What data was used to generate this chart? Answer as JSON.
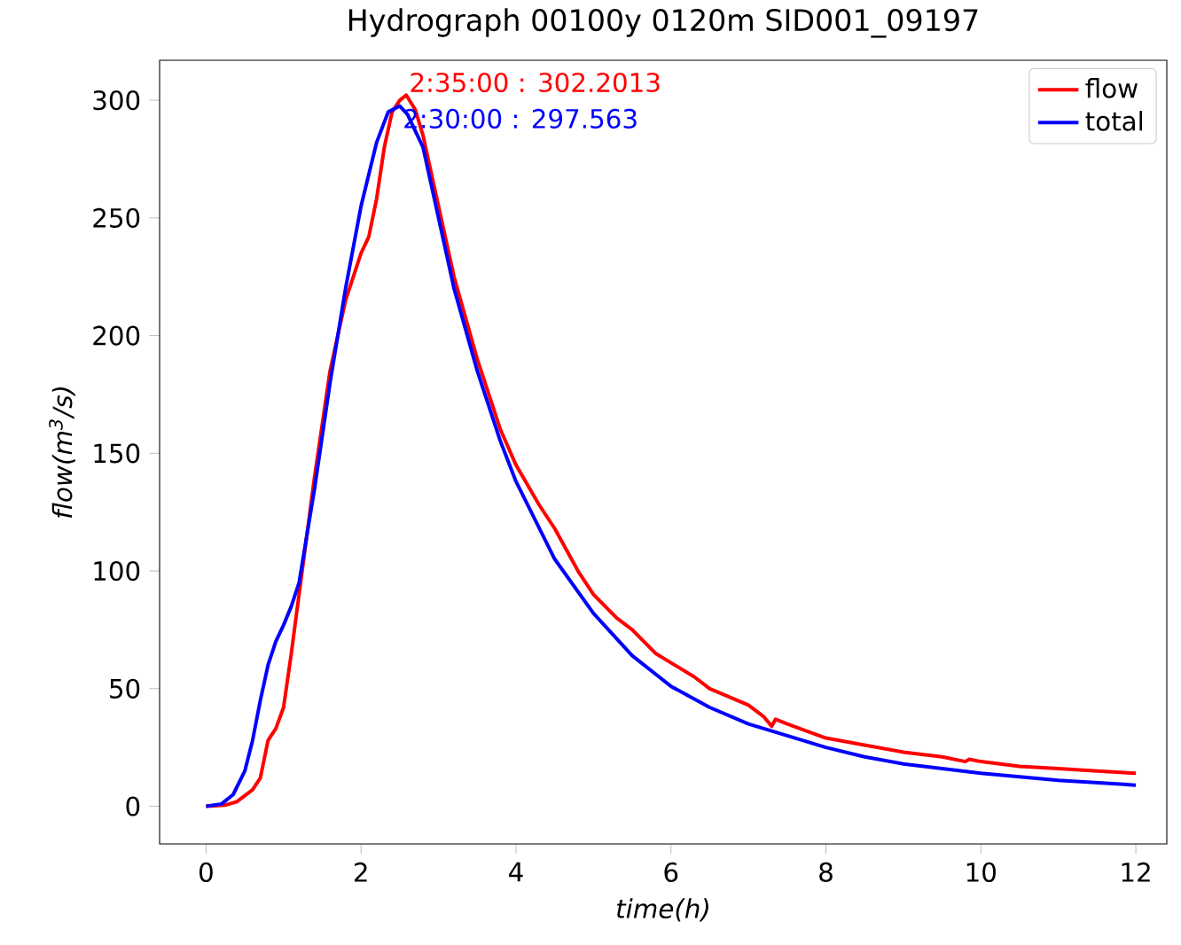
{
  "chart_data": {
    "type": "line",
    "title": "Hydrograph 00100y 0120m SID001_09197",
    "xlabel": "time(h)",
    "ylabel": "flow(m$^{3}$/s)",
    "xlim": [
      -0.6,
      12.4
    ],
    "ylim": [
      -16,
      317
    ],
    "xticks": [
      0,
      2,
      4,
      6,
      8,
      10,
      12
    ],
    "yticks": [
      0,
      50,
      100,
      150,
      200,
      250,
      300
    ],
    "legend": "top right",
    "grid": false,
    "annotations": [
      {
        "text": "2:35:00 : 302.2013",
        "x": 2.5833,
        "y": 302.2013
      },
      {
        "text": "2:30:00 : 297.563",
        "x": 2.5,
        "y": 297.563
      }
    ],
    "series": [
      {
        "name": "flow",
        "color": "#ff0000",
        "x": [
          0,
          0.25,
          0.4,
          0.6,
          0.7,
          0.8,
          0.9,
          1.0,
          1.1,
          1.2,
          1.4,
          1.6,
          1.8,
          2.0,
          2.1,
          2.2,
          2.3,
          2.4,
          2.5,
          2.5833,
          2.7,
          2.8,
          3.0,
          3.2,
          3.5,
          3.8,
          4.0,
          4.3,
          4.5,
          4.8,
          5.0,
          5.3,
          5.5,
          5.8,
          6.0,
          6.3,
          6.5,
          7.0,
          7.2,
          7.3,
          7.35,
          7.5,
          8.0,
          8.5,
          9.0,
          9.5,
          9.8,
          9.85,
          10.0,
          10.5,
          11.0,
          11.5,
          12.0
        ],
        "values": [
          0,
          0.5,
          2,
          7,
          12,
          28,
          33,
          42,
          65,
          90,
          140,
          185,
          215,
          235,
          242,
          258,
          280,
          295,
          300,
          302.2013,
          296,
          285,
          255,
          225,
          190,
          160,
          145,
          128,
          118,
          100,
          90,
          80,
          75,
          65,
          61,
          55,
          50,
          43,
          38,
          34,
          37,
          35,
          29,
          26,
          23,
          21,
          19,
          20,
          19,
          17,
          16,
          15,
          14
        ]
      },
      {
        "name": "total",
        "color": "#0000ff",
        "x": [
          0,
          0.2,
          0.35,
          0.5,
          0.6,
          0.7,
          0.8,
          0.9,
          1.0,
          1.1,
          1.2,
          1.4,
          1.6,
          1.8,
          2.0,
          2.2,
          2.35,
          2.5,
          2.6,
          2.8,
          3.0,
          3.2,
          3.5,
          3.8,
          4.0,
          4.5,
          5.0,
          5.5,
          6.0,
          6.5,
          7.0,
          7.5,
          8.0,
          8.5,
          9.0,
          9.5,
          10.0,
          10.5,
          11.0,
          11.5,
          12.0
        ],
        "values": [
          0,
          1,
          5,
          15,
          28,
          45,
          60,
          70,
          77,
          85,
          95,
          135,
          180,
          220,
          255,
          282,
          295,
          297.563,
          294,
          280,
          250,
          220,
          185,
          155,
          138,
          105,
          82,
          64,
          51,
          42,
          35,
          30,
          25,
          21,
          18,
          16,
          14,
          12.5,
          11,
          10,
          9
        ]
      }
    ]
  }
}
